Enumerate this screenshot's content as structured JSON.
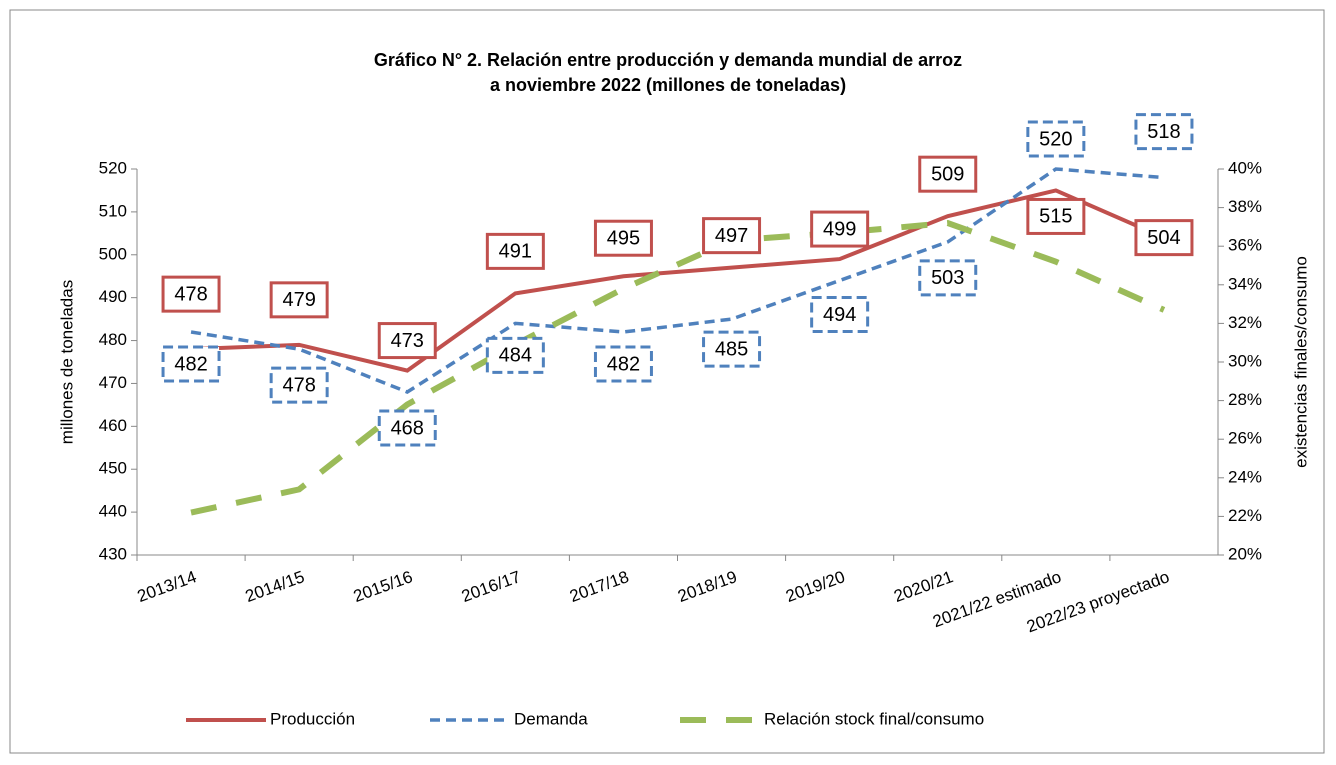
{
  "chart_data": {
    "type": "line",
    "title": "Gráfico N° 2. Relación entre producción y demanda mundial de arroz",
    "subtitle": "a noviembre 2022 (millones de toneladas)",
    "y_label": "millones de toneladas",
    "y2_label": "existencias finales/consumo",
    "categories": [
      "2013/14",
      "2014/15",
      "2015/16",
      "2016/17",
      "2017/18",
      "2018/19",
      "2019/20",
      "2020/21",
      "2021/22 estimado",
      "2022/23 proyectado"
    ],
    "series": [
      {
        "name": "Producción",
        "color": "#c0504d",
        "style": "solid",
        "values": [
          478,
          479,
          473,
          491,
          495,
          497,
          499,
          509,
          515,
          504
        ],
        "data_labels": true
      },
      {
        "name": "Demanda",
        "color": "#4f81bd",
        "style": "dashed",
        "values": [
          482,
          478,
          468,
          484,
          482,
          485,
          494,
          503,
          520,
          518
        ],
        "data_labels": true
      },
      {
        "name": "Relación stock final/consumo",
        "color": "#9bbb59",
        "style": "longdash",
        "axis": "y2",
        "values": [
          22.2,
          23.4,
          27.8,
          30.9,
          33.8,
          36.3,
          36.7,
          37.2,
          35.2,
          32.7
        ]
      }
    ],
    "ylim": [
      430,
      520
    ],
    "yticks": [
      430,
      440,
      450,
      460,
      470,
      480,
      490,
      500,
      510,
      520
    ],
    "y2lim": [
      20,
      40
    ],
    "y2ticks": [
      {
        "value": 20,
        "label": "20%"
      },
      {
        "value": 22,
        "label": "22%"
      },
      {
        "value": 24,
        "label": "24%"
      },
      {
        "value": 26,
        "label": "26%"
      },
      {
        "value": 28,
        "label": "28%"
      },
      {
        "value": 30,
        "label": "30%"
      },
      {
        "value": 32,
        "label": "32%"
      },
      {
        "value": 34,
        "label": "34%"
      },
      {
        "value": 36,
        "label": "36%"
      },
      {
        "value": 38,
        "label": "38%"
      },
      {
        "value": 40,
        "label": "40%"
      }
    ],
    "legend": "bottom"
  }
}
